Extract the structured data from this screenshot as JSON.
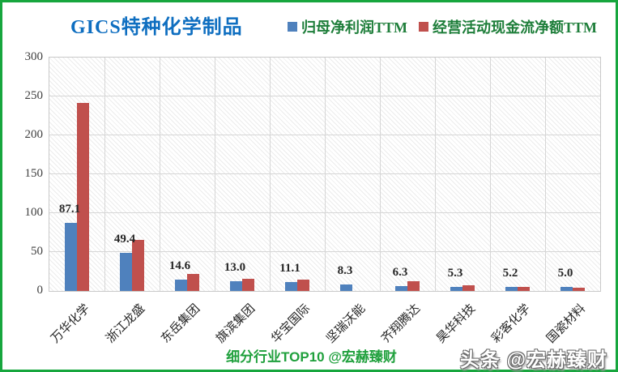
{
  "title": "GICS特种化学制品",
  "legend": [
    {
      "label": "归母净利润TTM",
      "color": "#4f81bd"
    },
    {
      "label": "经营活动现金流净额TTM",
      "color": "#c0504d"
    }
  ],
  "chart_data": {
    "type": "bar",
    "title": "GICS特种化学制品",
    "categories": [
      "万华化学",
      "浙江龙盛",
      "东岳集团",
      "旗滨集团",
      "华宝国际",
      "坚瑞沃能",
      "齐翔腾达",
      "昊华科技",
      "彩客化学",
      "国瓷材料"
    ],
    "series": [
      {
        "name": "归母净利润TTM",
        "color": "#4f81bd",
        "values": [
          87.1,
          49.4,
          14.6,
          13.0,
          11.1,
          8.3,
          6.3,
          5.3,
          5.2,
          5.0
        ],
        "data_labels_shown": true
      },
      {
        "name": "经营活动现金流净额TTM",
        "color": "#c0504d",
        "values": [
          242,
          66,
          22,
          16,
          15,
          0,
          12,
          7,
          5,
          4
        ],
        "values_estimated_from_gridlines": true
      }
    ],
    "xlabel": "",
    "ylabel": "",
    "ylim": [
      0,
      300
    ],
    "yticks": [
      0,
      50,
      100,
      150,
      200,
      250,
      300
    ],
    "grid": "horizontal and vertical light gray gridlines, hatched plot background",
    "legend_position": "top"
  },
  "footer": {
    "caption": "细分行业TOP10 @宏赫臻财",
    "watermark": "头条 @宏赫臻财"
  },
  "colors": {
    "frame_green": "#17a63e",
    "title_blue": "#0e6ec0",
    "legend_text_green": "#1e7e3a",
    "caption_green": "#1fa03c",
    "bar_blue": "#4f81bd",
    "bar_red": "#c0504d",
    "gridline": "#d6d6d6",
    "axis_text": "#3f3f3f"
  }
}
